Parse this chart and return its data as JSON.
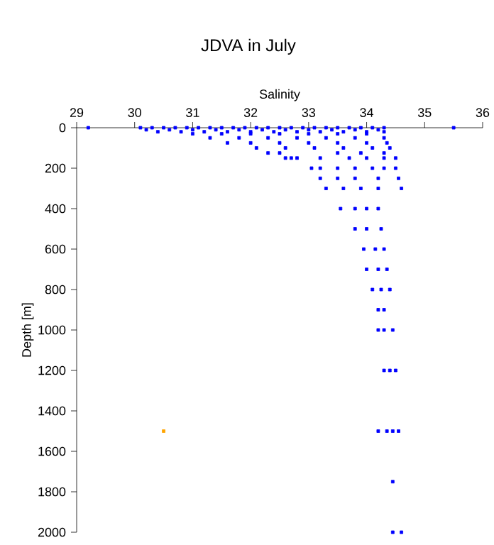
{
  "chart_data": {
    "type": "scatter",
    "title": "JDVA in July",
    "xlabel": "Salinity",
    "ylabel": "Depth [m]",
    "xlim": [
      29,
      36
    ],
    "xticks": [
      29,
      30,
      31,
      32,
      33,
      34,
      35,
      36
    ],
    "ylim": [
      2000,
      0
    ],
    "yticks": [
      0,
      200,
      400,
      600,
      800,
      1000,
      1200,
      1400,
      1600,
      1800,
      2000
    ],
    "grid": false,
    "marker": "square",
    "series": [
      {
        "color": "#0000ff",
        "x": [
          29.2,
          30.1,
          30.3,
          30.5,
          30.7,
          30.9,
          31.1,
          31.3,
          31.5,
          31.7,
          31.9,
          32.1,
          32.3,
          32.5,
          32.7,
          32.9,
          33.1,
          33.3,
          33.5,
          33.7,
          33.9,
          34.1,
          34.3,
          35.5,
          30.2,
          30.6,
          31.0,
          31.4,
          31.8,
          32.2,
          32.6,
          33.0,
          33.4,
          33.8,
          34.2,
          30.4,
          30.8,
          31.2,
          31.6,
          32.0,
          32.4,
          32.8,
          33.2,
          33.6,
          34.0,
          34.3,
          31.0,
          31.5,
          32.0,
          32.5,
          33.0,
          33.5,
          34.0,
          31.3,
          31.8,
          32.3,
          32.8,
          33.3,
          33.8,
          34.3,
          31.6,
          32.0,
          32.5,
          33.0,
          33.5,
          34.0,
          34.35,
          32.1,
          32.6,
          33.1,
          33.6,
          34.1,
          34.4,
          32.3,
          32.5,
          33.5,
          33.9,
          34.3,
          32.6,
          32.7,
          32.8,
          33.2,
          33.7,
          34.0,
          34.3,
          34.5,
          33.05,
          33.2,
          33.5,
          33.8,
          34.1,
          34.3,
          34.5,
          33.2,
          33.5,
          33.8,
          34.2,
          34.55,
          33.3,
          33.6,
          33.9,
          34.2,
          34.6,
          33.55,
          33.8,
          34.0,
          34.2,
          33.8,
          34.0,
          34.25,
          33.95,
          34.15,
          34.3,
          34.0,
          34.2,
          34.35,
          34.1,
          34.25,
          34.4,
          34.2,
          34.3,
          34.2,
          34.3,
          34.45,
          34.3,
          34.4,
          34.5,
          34.2,
          34.35,
          34.45,
          34.55,
          34.45,
          34.45,
          34.6
        ],
        "values": [
          0,
          0,
          0,
          0,
          0,
          0,
          0,
          0,
          0,
          0,
          0,
          0,
          0,
          0,
          0,
          0,
          0,
          0,
          0,
          0,
          0,
          0,
          0,
          0,
          10,
          10,
          10,
          10,
          10,
          10,
          10,
          10,
          10,
          10,
          10,
          20,
          20,
          20,
          20,
          20,
          20,
          20,
          20,
          20,
          20,
          20,
          30,
          30,
          30,
          30,
          30,
          30,
          30,
          50,
          50,
          50,
          50,
          50,
          50,
          50,
          75,
          75,
          75,
          75,
          75,
          75,
          75,
          100,
          100,
          100,
          100,
          100,
          100,
          125,
          125,
          125,
          125,
          125,
          150,
          150,
          150,
          150,
          150,
          150,
          150,
          150,
          200,
          200,
          200,
          200,
          200,
          200,
          200,
          250,
          250,
          250,
          250,
          250,
          300,
          300,
          300,
          300,
          300,
          400,
          400,
          400,
          400,
          500,
          500,
          500,
          600,
          600,
          600,
          700,
          700,
          700,
          800,
          800,
          800,
          900,
          900,
          1000,
          1000,
          1000,
          1200,
          1200,
          1200,
          1500,
          1500,
          1500,
          1500,
          1750,
          2000,
          2000
        ]
      },
      {
        "color": "#ffa500",
        "x": [
          30.5
        ],
        "values": [
          1500
        ]
      }
    ]
  }
}
